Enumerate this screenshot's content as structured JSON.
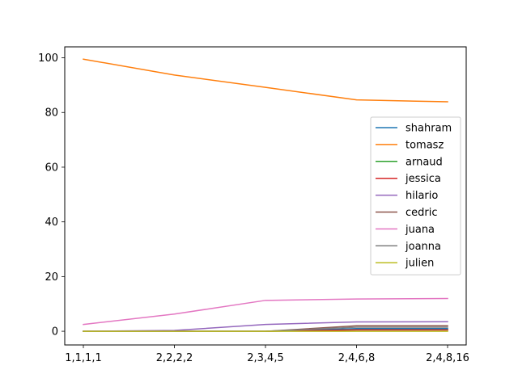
{
  "chart_data": {
    "type": "line",
    "title": "",
    "xlabel": "",
    "ylabel": "",
    "categories": [
      "1,1,1,1",
      "2,2,2,2",
      "2,3,4,5",
      "2,4,6,8",
      "2,4,8,16"
    ],
    "ylim": [
      -5,
      104
    ],
    "yticks": [
      0,
      20,
      40,
      60,
      80,
      100
    ],
    "grid": false,
    "legend_position": "center-right",
    "series": [
      {
        "name": "shahram",
        "color": "#1f77b4",
        "values": [
          0,
          0,
          0,
          1,
          1
        ]
      },
      {
        "name": "tomasz",
        "color": "#ff7f0e",
        "values": [
          99.5,
          93.7,
          89.2,
          84.6,
          83.9
        ]
      },
      {
        "name": "arnaud",
        "color": "#2ca02c",
        "values": [
          0,
          0,
          0,
          0.5,
          0.5
        ]
      },
      {
        "name": "jessica",
        "color": "#d62728",
        "values": [
          0,
          0,
          0,
          0.5,
          0.5
        ]
      },
      {
        "name": "hilario",
        "color": "#9467bd",
        "values": [
          0,
          0.3,
          2.5,
          3.4,
          3.5
        ]
      },
      {
        "name": "cedric",
        "color": "#8c564b",
        "values": [
          0,
          0,
          0,
          2,
          2
        ]
      },
      {
        "name": "juana",
        "color": "#e377c2",
        "values": [
          2.5,
          6.3,
          11.3,
          11.8,
          12
        ]
      },
      {
        "name": "joanna",
        "color": "#7f7f7f",
        "values": [
          0,
          0,
          0,
          1.5,
          1.5
        ]
      },
      {
        "name": "julien",
        "color": "#bcbd22",
        "values": [
          0,
          0,
          0,
          0,
          0
        ]
      }
    ]
  }
}
